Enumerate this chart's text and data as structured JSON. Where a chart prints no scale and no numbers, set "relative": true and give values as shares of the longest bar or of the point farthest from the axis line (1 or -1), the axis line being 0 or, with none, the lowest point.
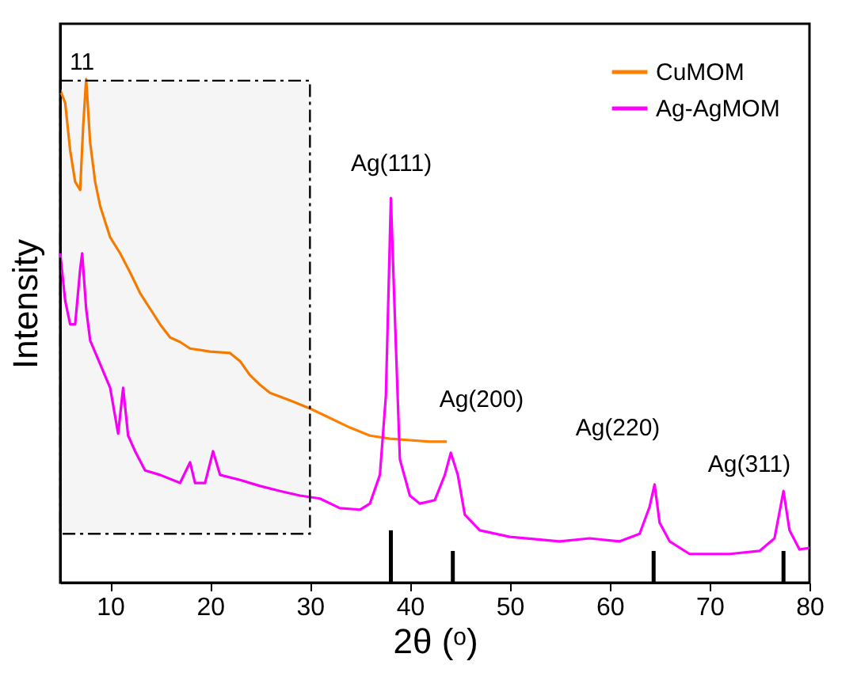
{
  "chart_data": {
    "type": "line",
    "relative": true,
    "xlabel": "2θ (ᵒ)",
    "ylabel": "Intensity",
    "xlim": [
      5,
      80
    ],
    "xticks": [
      10,
      20,
      30,
      40,
      50,
      60,
      70,
      80
    ],
    "legend": "top right",
    "marker": "none",
    "line_style": "solid",
    "grid": false,
    "series": [
      {
        "name": "CuMOM",
        "color": "#ff8000",
        "x": [
          5,
          5.5,
          6,
          6.5,
          7,
          7.3,
          7.6,
          8,
          8.5,
          9,
          10,
          11,
          12,
          13,
          14,
          15,
          16,
          17,
          18,
          20,
          22,
          23,
          24,
          25,
          26,
          28,
          30,
          32,
          34,
          36,
          38,
          40,
          42,
          43.7
        ],
        "values": [
          0.978,
          0.953,
          0.858,
          0.796,
          0.78,
          0.906,
          1.0,
          0.874,
          0.796,
          0.748,
          0.686,
          0.654,
          0.616,
          0.575,
          0.544,
          0.513,
          0.487,
          0.478,
          0.465,
          0.459,
          0.456,
          0.44,
          0.412,
          0.393,
          0.377,
          0.362,
          0.346,
          0.327,
          0.308,
          0.292,
          0.286,
          0.283,
          0.28,
          0.28
        ]
      },
      {
        "name": "Ag-AgMOM",
        "color": "#ff00ff",
        "x": [
          5,
          5.5,
          6,
          6.5,
          7,
          7.2,
          7.6,
          8,
          9,
          10,
          10.8,
          11.3,
          11.8,
          12.5,
          13.5,
          15,
          17,
          18,
          18.5,
          19.5,
          20.3,
          21,
          23,
          25,
          27,
          29,
          31,
          33,
          35,
          36,
          37,
          37.6,
          38.1,
          38.5,
          39,
          40,
          41,
          42.5,
          43.5,
          44.1,
          44.8,
          45.5,
          47,
          50,
          55,
          58,
          61,
          63,
          64,
          64.5,
          65,
          66,
          68,
          72,
          75,
          76.5,
          77.4,
          78,
          79,
          80
        ],
        "values": [
          0.654,
          0.56,
          0.513,
          0.513,
          0.623,
          0.654,
          0.544,
          0.481,
          0.434,
          0.387,
          0.296,
          0.387,
          0.292,
          0.261,
          0.223,
          0.214,
          0.198,
          0.239,
          0.198,
          0.198,
          0.261,
          0.214,
          0.204,
          0.192,
          0.182,
          0.173,
          0.167,
          0.148,
          0.145,
          0.157,
          0.214,
          0.371,
          0.764,
          0.528,
          0.245,
          0.173,
          0.157,
          0.164,
          0.214,
          0.258,
          0.214,
          0.135,
          0.104,
          0.091,
          0.082,
          0.088,
          0.082,
          0.097,
          0.151,
          0.195,
          0.119,
          0.082,
          0.057,
          0.057,
          0.063,
          0.088,
          0.182,
          0.104,
          0.066,
          0.069
        ]
      },
      {
        "type": "bar",
        "color": "#000000",
        "x": [
          38.1,
          44.3,
          64.4,
          77.4
        ],
        "values": [
          0.104,
          0.063,
          0.063,
          0.063
        ]
      }
    ],
    "bands": [
      {
        "axis": "x",
        "from": 5,
        "to": 30,
        "label": "11"
      }
    ],
    "annotations": [
      "Ag(111)",
      "Ag(200)",
      "Ag(220)",
      "Ag(311)"
    ]
  }
}
